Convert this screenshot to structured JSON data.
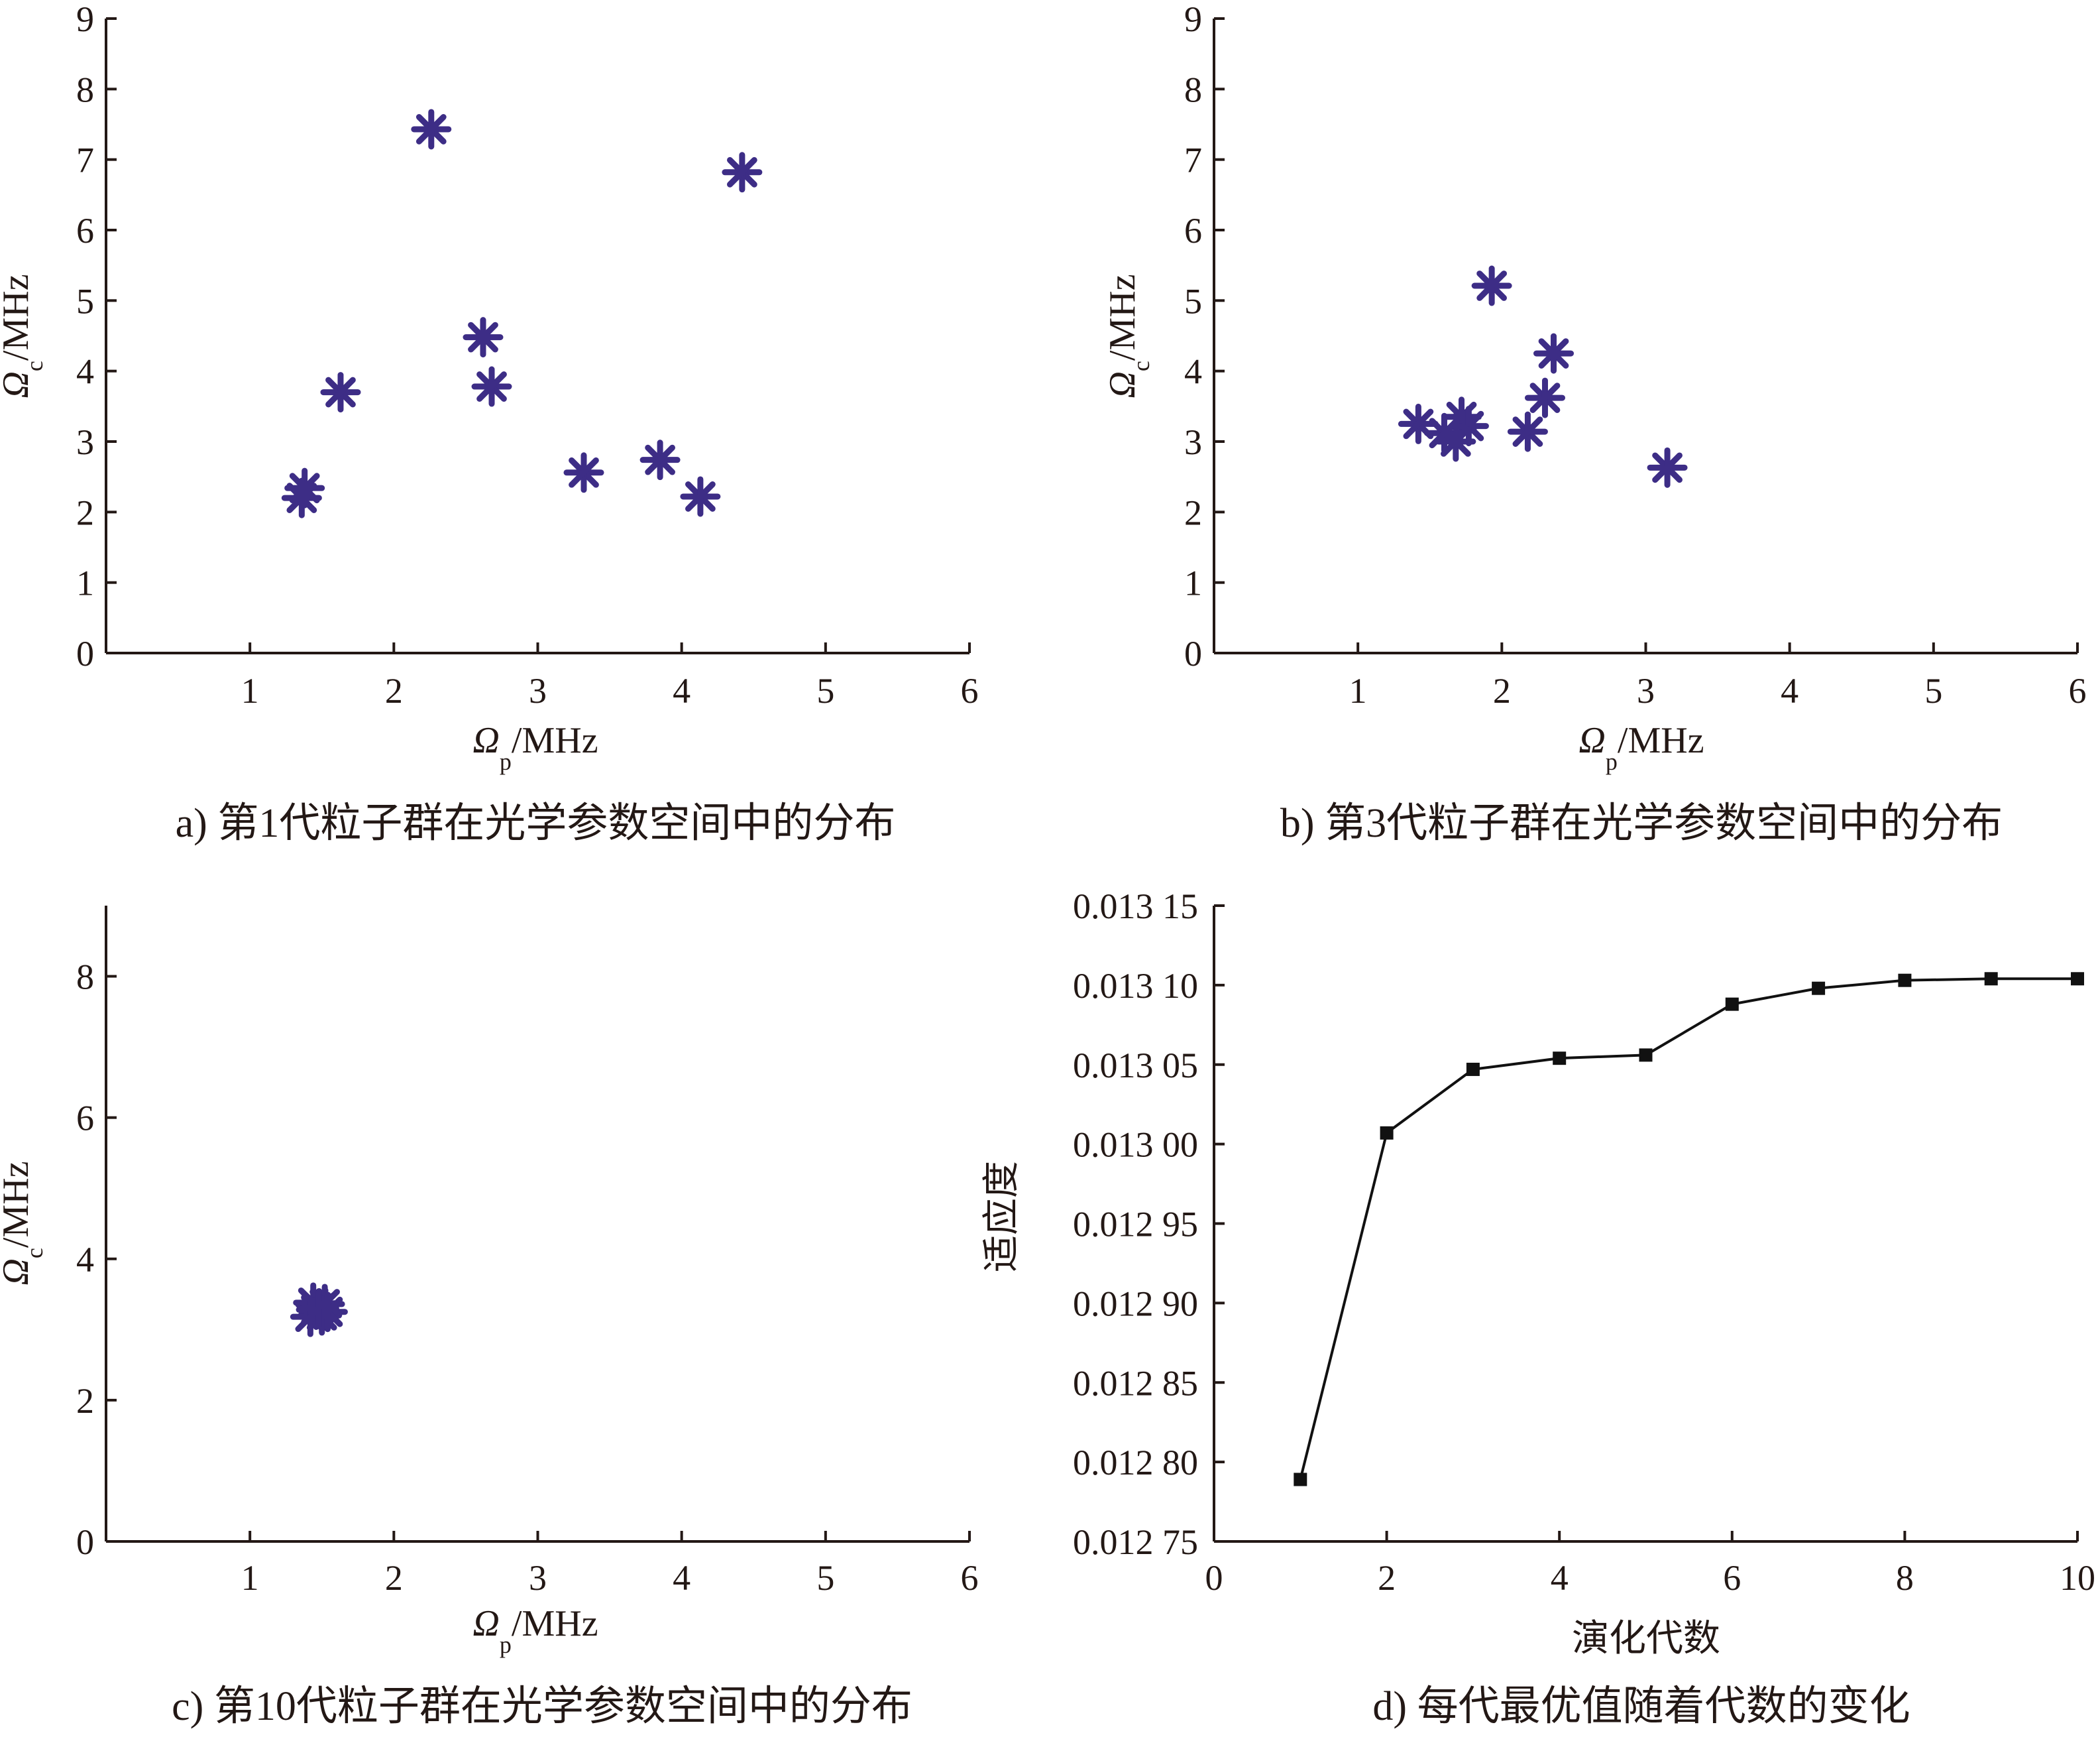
{
  "colors": {
    "marker": "#3d2d86",
    "axis": "#231815",
    "line": "#111111"
  },
  "chart_data": [
    {
      "id": "a",
      "type": "scatter",
      "caption": "a) 第1代粒子群在光学参数空间中的分布",
      "xlabel_sym": "Ω",
      "xlabel_sub": "p",
      "xlabel_unit": "/MHz",
      "ylabel_sym": "Ω",
      "ylabel_sub": "c",
      "ylabel_unit": "/MHz",
      "xlim": [
        0,
        6
      ],
      "ylim": [
        0,
        9
      ],
      "xticks": [
        1,
        2,
        3,
        4,
        5,
        6
      ],
      "yticks": [
        0,
        1,
        2,
        3,
        4,
        5,
        6,
        7,
        8,
        9
      ],
      "marker": "asterisk",
      "points": [
        {
          "x": 2.26,
          "y": 7.43
        },
        {
          "x": 4.42,
          "y": 6.82
        },
        {
          "x": 2.62,
          "y": 4.48
        },
        {
          "x": 1.63,
          "y": 3.7
        },
        {
          "x": 2.68,
          "y": 3.78
        },
        {
          "x": 3.32,
          "y": 2.56
        },
        {
          "x": 3.85,
          "y": 2.74
        },
        {
          "x": 4.13,
          "y": 2.22
        },
        {
          "x": 1.38,
          "y": 2.34
        },
        {
          "x": 1.36,
          "y": 2.2
        }
      ]
    },
    {
      "id": "b",
      "type": "scatter",
      "caption": "b) 第3代粒子群在光学参数空间中的分布",
      "xlabel_sym": "Ω",
      "xlabel_sub": "p",
      "xlabel_unit": "/MHz",
      "ylabel_sym": "Ω",
      "ylabel_sub": "c",
      "ylabel_unit": "/MHz",
      "xlim": [
        0,
        6
      ],
      "ylim": [
        0,
        9
      ],
      "xticks": [
        1,
        2,
        3,
        4,
        5,
        6
      ],
      "yticks": [
        0,
        1,
        2,
        3,
        4,
        5,
        6,
        7,
        8,
        9
      ],
      "marker": "asterisk",
      "points": [
        {
          "x": 1.93,
          "y": 5.21
        },
        {
          "x": 2.36,
          "y": 4.25
        },
        {
          "x": 2.3,
          "y": 3.62
        },
        {
          "x": 1.42,
          "y": 3.25
        },
        {
          "x": 1.72,
          "y": 3.35
        },
        {
          "x": 1.77,
          "y": 3.22
        },
        {
          "x": 1.6,
          "y": 3.12
        },
        {
          "x": 1.68,
          "y": 3.0
        },
        {
          "x": 2.18,
          "y": 3.14
        },
        {
          "x": 3.15,
          "y": 2.63
        }
      ]
    },
    {
      "id": "c",
      "type": "scatter",
      "caption": "c) 第10代粒子群在光学参数空间中的分布",
      "xlabel_sym": "Ω",
      "xlabel_sub": "p",
      "xlabel_unit": "/MHz",
      "ylabel_sym": "Ω",
      "ylabel_sub": "c",
      "ylabel_unit": "/MHz",
      "xlim": [
        0,
        6
      ],
      "ylim": [
        0,
        9
      ],
      "xticks": [
        1,
        2,
        3,
        4,
        5,
        6
      ],
      "yticks": [
        0,
        2,
        4,
        6,
        8
      ],
      "marker": "asterisk",
      "points": [
        {
          "x": 1.44,
          "y": 3.38
        },
        {
          "x": 1.52,
          "y": 3.36
        },
        {
          "x": 1.46,
          "y": 3.28
        },
        {
          "x": 1.5,
          "y": 3.2
        },
        {
          "x": 1.42,
          "y": 3.18
        },
        {
          "x": 1.54,
          "y": 3.25
        },
        {
          "x": 1.48,
          "y": 3.3
        }
      ]
    },
    {
      "id": "d",
      "type": "line",
      "caption": "d) 每代最优值随着代数的变化",
      "xlabel": "演化代数",
      "ylabel": "适应度",
      "xlim": [
        0,
        10
      ],
      "ylim": [
        0.01275,
        0.01315
      ],
      "xticks": [
        0,
        2,
        4,
        6,
        8,
        10
      ],
      "yticks": [
        0.01275,
        0.0128,
        0.01285,
        0.0129,
        0.01295,
        0.013,
        0.01305,
        0.0131,
        0.01315
      ],
      "ytick_labels": [
        "0.012 75",
        "0.012 80",
        "0.012 85",
        "0.012 90",
        "0.012 95",
        "0.013 00",
        "0.013 05",
        "0.013 10",
        "0.013 15"
      ],
      "marker": "square",
      "x": [
        1,
        2,
        3,
        4,
        5,
        6,
        7,
        8,
        9,
        10
      ],
      "y": [
        0.012789,
        0.013007,
        0.013047,
        0.013054,
        0.013056,
        0.013088,
        0.013098,
        0.013103,
        0.013104,
        0.013104
      ]
    }
  ]
}
